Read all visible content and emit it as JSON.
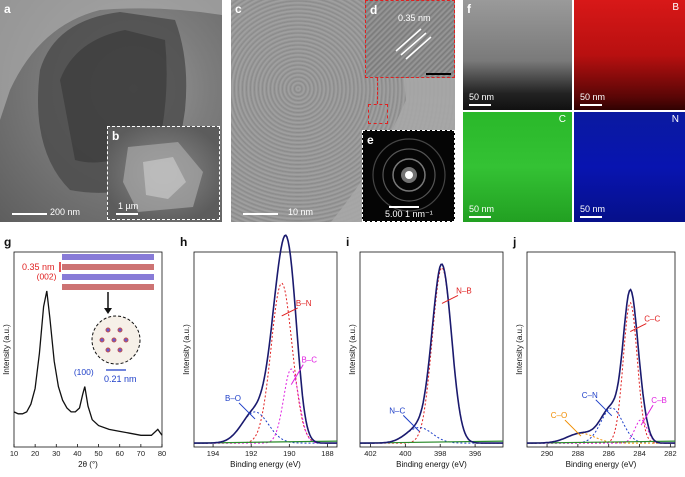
{
  "panels": {
    "a": {
      "label": "a",
      "scale": "200 nm"
    },
    "b": {
      "label": "b",
      "scale": "1 µm"
    },
    "c": {
      "label": "c",
      "scale": "10 nm"
    },
    "d": {
      "label": "d",
      "spacing": "0.35 nm"
    },
    "e": {
      "label": "e",
      "scale": "5.00 1 nm⁻¹"
    },
    "f": {
      "label": "f",
      "scale": "50 nm",
      "channels": [
        "B",
        "C",
        "N"
      ]
    },
    "g": {
      "label": "g",
      "interlayer": "0.35 nm",
      "lattice": "0.21 nm"
    },
    "h": {
      "label": "h"
    },
    "i": {
      "label": "i"
    },
    "j": {
      "label": "j"
    }
  },
  "colors": {
    "envelope": "#1a1a6e",
    "peak1": "#e02020",
    "peak2": "#1e3fc8",
    "peak3": "#e020e0",
    "background": "#2a8a2a",
    "raw": "#111111",
    "red_box": "#e02020",
    "label_red": "#e02020",
    "label_blue": "#1e3fc8",
    "label_magenta": "#e020e0",
    "label_orange": "#f08c00"
  },
  "chart_data": [
    {
      "panel": "g",
      "type": "line",
      "xlabel": "2θ (°)",
      "ylabel": "Intensity (a.u.)",
      "xlim": [
        10,
        80
      ],
      "xticks": [
        10,
        20,
        30,
        40,
        50,
        60,
        70,
        80
      ],
      "tick_labels": [
        "10",
        "20",
        "30",
        "40",
        "50",
        "60",
        "70",
        "80"
      ],
      "annotations": [
        {
          "text": "(002)",
          "x": 25.4
        },
        {
          "text": "(100)",
          "x": 43.0
        }
      ],
      "series": [
        {
          "x": [
            10,
            12,
            14,
            16,
            18,
            20,
            22,
            24,
            25.5,
            27,
            29,
            31,
            33,
            35,
            37,
            39,
            41,
            42.5,
            43.5,
            45,
            47,
            50,
            55,
            60,
            65,
            70,
            75,
            78,
            80
          ],
          "y": [
            0.18,
            0.17,
            0.17,
            0.18,
            0.22,
            0.3,
            0.48,
            0.72,
            0.8,
            0.66,
            0.44,
            0.31,
            0.24,
            0.2,
            0.18,
            0.18,
            0.2,
            0.27,
            0.31,
            0.21,
            0.14,
            0.11,
            0.09,
            0.08,
            0.07,
            0.06,
            0.06,
            0.09,
            0.06
          ]
        }
      ]
    },
    {
      "panel": "h",
      "type": "line",
      "xlabel": "Binding energy (eV)",
      "ylabel": "Intensity (a.u.)",
      "xlim": [
        195,
        187.5
      ],
      "xticks": [
        194,
        192,
        190,
        188
      ],
      "tick_labels": [
        "194",
        "192",
        "190",
        "188"
      ],
      "peaks": [
        {
          "name": "B–N",
          "center": 190.4,
          "width": 0.55,
          "height": 0.82
        },
        {
          "name": "B–O",
          "center": 191.8,
          "width": 0.7,
          "height": 0.16
        },
        {
          "name": "B–C",
          "center": 189.9,
          "width": 0.4,
          "height": 0.38
        }
      ],
      "labels": [
        "B–N",
        "B–O",
        "B–C"
      ]
    },
    {
      "panel": "i",
      "type": "line",
      "xlabel": "Binding energy (eV)",
      "ylabel": "Intensity (a.u.)",
      "xlim": [
        402.6,
        394.4
      ],
      "xticks": [
        402,
        400,
        398,
        396
      ],
      "tick_labels": [
        "402",
        "400",
        "398",
        "396"
      ],
      "peaks": [
        {
          "name": "N–B",
          "center": 397.9,
          "width": 0.55,
          "height": 0.9
        },
        {
          "name": "N–C",
          "center": 399.2,
          "width": 0.75,
          "height": 0.08
        }
      ],
      "labels": [
        "N–B",
        "N–C"
      ]
    },
    {
      "panel": "j",
      "type": "line",
      "xlabel": "Binding energy (eV)",
      "ylabel": "Intensity (a.u.)",
      "xlim": [
        291.3,
        281.7
      ],
      "xticks": [
        290,
        288,
        286,
        284,
        282
      ],
      "tick_labels": [
        "290",
        "288",
        "286",
        "284",
        "282"
      ],
      "peaks": [
        {
          "name": "C–C",
          "center": 284.6,
          "width": 0.45,
          "height": 0.72
        },
        {
          "name": "C–N",
          "center": 285.8,
          "width": 0.7,
          "height": 0.18
        },
        {
          "name": "C–O",
          "center": 287.8,
          "width": 0.9,
          "height": 0.05
        },
        {
          "name": "C–B",
          "center": 283.9,
          "width": 0.4,
          "height": 0.12
        }
      ],
      "labels": [
        "C–C",
        "C–N",
        "C–O",
        "C–B"
      ]
    }
  ]
}
